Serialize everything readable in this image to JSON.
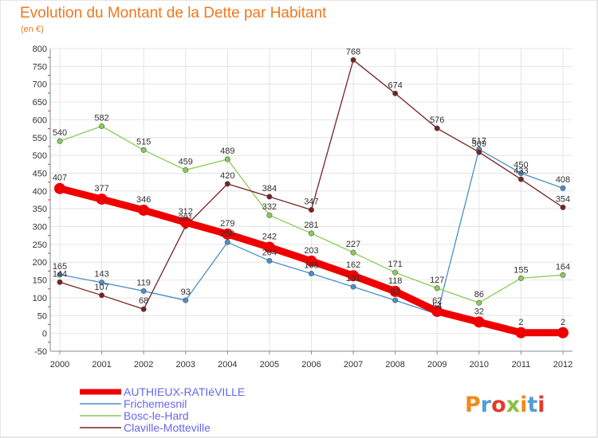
{
  "title": "Evolution du Montant de la Dette par Habitant",
  "subtitle": "(en €)",
  "logo": "Proxiti",
  "chart_data": {
    "type": "line",
    "title": "Evolution du Montant de la Dette par Habitant",
    "subtitle": "(en €)",
    "xlabel": "",
    "ylabel": "",
    "x": [
      "2000",
      "2001",
      "2002",
      "2003",
      "2004",
      "2005",
      "2006",
      "2007",
      "2008",
      "2009",
      "2010",
      "2011",
      "2012"
    ],
    "ylim": [
      -50,
      800
    ],
    "yticks": [
      -50,
      0,
      50,
      100,
      150,
      200,
      250,
      300,
      350,
      400,
      450,
      500,
      550,
      600,
      650,
      700,
      750,
      800
    ],
    "grid": true,
    "legend": "bottom-left",
    "series": [
      {
        "name": "Frichemesnil",
        "color": "#4a8fc8",
        "values": [
          165,
          143,
          119,
          93,
          256,
          204,
          168,
          131,
          93,
          54,
          517,
          450,
          408
        ],
        "labels": [
          "165",
          "143",
          "119",
          "93",
          "256",
          "204",
          "168",
          "131",
          "93",
          "54",
          "517",
          "450",
          "408"
        ]
      },
      {
        "name": "Bosc-le-Hard",
        "color": "#88cc55",
        "values": [
          540,
          582,
          515,
          459,
          489,
          332,
          281,
          227,
          171,
          127,
          86,
          155,
          164
        ],
        "labels": [
          "540",
          "582",
          "515",
          "459",
          "489",
          "332",
          "281",
          "227",
          "171",
          "127",
          "86",
          "155",
          "164"
        ]
      },
      {
        "name": "Claville-Motteville",
        "color": "#772222",
        "values": [
          144,
          107,
          68,
          301,
          420,
          384,
          347,
          768,
          674,
          576,
          509,
          433,
          354
        ],
        "labels": [
          "144",
          "107",
          "68",
          "301",
          "420",
          "384",
          "347",
          "768",
          "674",
          "576",
          "509",
          "433",
          "354"
        ]
      },
      {
        "name": "AUTHIEUX-RATIéVILLE",
        "color": "#ee0000",
        "values": [
          407,
          377,
          346,
          312,
          279,
          242,
          203,
          162,
          118,
          62,
          32,
          2,
          2
        ],
        "labels": [
          "407",
          "377",
          "346",
          "312",
          "279",
          "242",
          "203",
          "162",
          "118",
          "62",
          "32",
          "2",
          "2"
        ]
      }
    ],
    "legend_order": [
      "AUTHIEUX-RATIéVILLE",
      "Frichemesnil",
      "Bosc-le-Hard",
      "Claville-Motteville"
    ]
  }
}
